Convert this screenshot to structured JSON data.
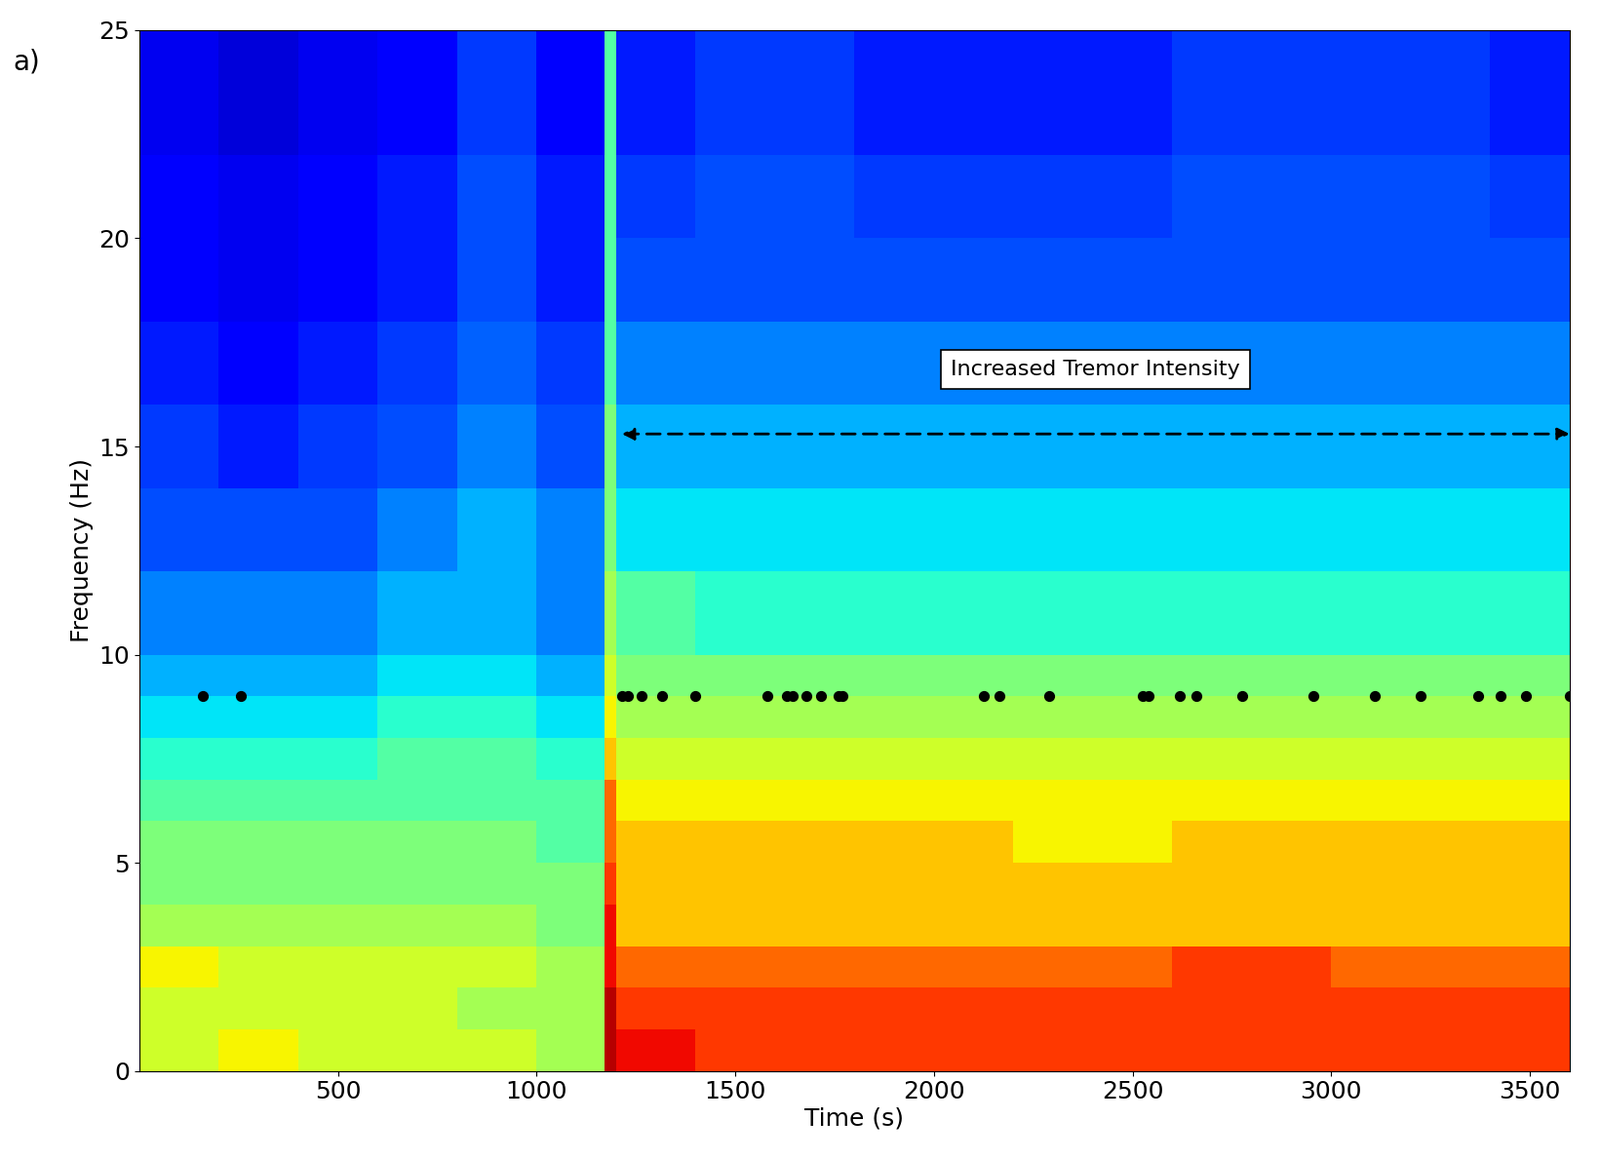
{
  "chart_data": {
    "type": "heatmap",
    "panel_label": "a)",
    "x_label": "Time (s)",
    "y_label": "Frequency (Hz)",
    "xlim": [
      0,
      3600
    ],
    "ylim": [
      0,
      25
    ],
    "xticks": [
      500,
      1000,
      1500,
      2000,
      2500,
      3000,
      3500
    ],
    "yticks": [
      0,
      5,
      10,
      15,
      20,
      25
    ],
    "grid": false,
    "time_edges": [
      0,
      200,
      400,
      600,
      800,
      1000,
      1170,
      1200,
      1400,
      1800,
      2200,
      2600,
      3000,
      3400,
      3600
    ],
    "frequency_edges": [
      0,
      1,
      2,
      3,
      4,
      5,
      6,
      7,
      8,
      9,
      10,
      12,
      14,
      16,
      18,
      20,
      22,
      25
    ],
    "clim": [
      0,
      10
    ],
    "cells": [
      [
        6,
        6.5,
        6,
        6,
        6,
        5.5,
        9.5,
        9,
        8.5,
        8.5,
        8.5,
        8.5,
        8.5,
        8.5
      ],
      [
        6,
        6,
        6,
        6,
        5.5,
        5.5,
        9.5,
        8.5,
        8.5,
        8.5,
        8.5,
        8.5,
        8.5,
        8.5
      ],
      [
        6.5,
        6,
        6,
        6,
        6,
        5.5,
        9,
        8,
        8,
        8,
        8,
        8.5,
        8,
        8
      ],
      [
        5.5,
        5.5,
        5.5,
        5.5,
        5.5,
        5,
        9,
        7,
        7,
        7,
        7,
        7,
        7,
        7
      ],
      [
        5,
        5,
        5,
        5,
        5,
        5,
        8.5,
        7,
        7,
        7,
        7,
        7,
        7,
        7
      ],
      [
        5,
        5,
        5,
        5,
        5,
        4.5,
        8,
        7,
        7,
        7,
        6.5,
        7,
        7,
        7
      ],
      [
        4.5,
        4.5,
        4.5,
        4.5,
        4.5,
        4.5,
        8,
        6.5,
        6.5,
        6.5,
        6.5,
        6.5,
        6.5,
        6.5
      ],
      [
        4,
        4,
        4,
        4.5,
        4.5,
        4,
        7,
        6,
        6,
        6,
        6,
        6,
        6,
        6
      ],
      [
        3.5,
        3.5,
        3.5,
        4,
        4,
        3.5,
        6.5,
        5.5,
        5.5,
        5.5,
        5.5,
        5.5,
        5.5,
        5.5
      ],
      [
        3,
        3,
        3,
        3.5,
        3.5,
        3,
        6,
        5,
        5,
        5,
        5,
        5,
        5,
        5
      ],
      [
        2.5,
        2.5,
        2.5,
        3,
        3,
        2.5,
        5.5,
        4.5,
        4,
        4,
        4,
        4,
        4,
        4
      ],
      [
        2,
        2,
        2,
        2.5,
        3,
        2.5,
        5,
        3.5,
        3.5,
        3.5,
        3.5,
        3.5,
        3.5,
        3.5
      ],
      [
        1.8,
        1.5,
        1.8,
        2,
        2.5,
        2,
        5,
        3,
        3,
        3,
        3,
        3,
        3,
        3
      ],
      [
        1.5,
        1.2,
        1.5,
        1.8,
        2.2,
        1.8,
        4.5,
        2.5,
        2.5,
        2.5,
        2.5,
        2.5,
        2.5,
        2.5
      ],
      [
        1.2,
        1,
        1.2,
        1.5,
        2,
        1.5,
        4.5,
        2,
        2,
        2,
        2,
        2,
        2,
        2
      ],
      [
        1.2,
        1,
        1.2,
        1.5,
        2,
        1.5,
        4.5,
        1.8,
        2,
        1.8,
        1.8,
        2,
        2,
        1.8
      ],
      [
        1,
        0.8,
        1,
        1.2,
        1.8,
        1.2,
        4.5,
        1.5,
        1.8,
        1.5,
        1.5,
        1.8,
        1.8,
        1.5
      ]
    ],
    "points": {
      "x": [
        160,
        255,
        1215,
        1230,
        1265,
        1315,
        1400,
        1580,
        1630,
        1645,
        1680,
        1715,
        1760,
        1770,
        2125,
        2165,
        2290,
        2525,
        2540,
        2620,
        2660,
        2775,
        2955,
        3110,
        3225,
        3370,
        3425,
        3490,
        3600
      ],
      "y": [
        9,
        9,
        9,
        9,
        9,
        9,
        9,
        9,
        9,
        9,
        9,
        9,
        9,
        9,
        9,
        9,
        9,
        9,
        9,
        9,
        9,
        9,
        9,
        9,
        9,
        9,
        9,
        9,
        9
      ],
      "color": "#000000",
      "marker": "o"
    },
    "annotation": {
      "text": "Increased Tremor Intensity",
      "from": 1215,
      "to": 3600,
      "frequency": 15.3
    }
  }
}
